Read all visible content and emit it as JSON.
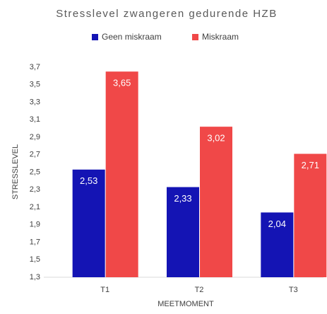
{
  "chart_data": {
    "type": "bar",
    "title": "Stresslevel zwangeren gedurende HZB",
    "x_label": "MEETMOMENT",
    "y_label": "STRESSLEVEL",
    "categories": [
      "T1",
      "T2",
      "T3"
    ],
    "series": [
      {
        "name": "Geen miskraam",
        "color": "#1414b4",
        "values": [
          2.53,
          2.33,
          2.04
        ],
        "value_labels": [
          "2,53",
          "2,33",
          "2,04"
        ]
      },
      {
        "name": "Miskraam",
        "color": "#f04848",
        "values": [
          3.65,
          3.02,
          2.71
        ],
        "value_labels": [
          "3,65",
          "3,02",
          "2,71"
        ]
      }
    ],
    "ylim": [
      1.3,
      3.7
    ],
    "yticks": [
      {
        "value": 1.3,
        "label": "1,3"
      },
      {
        "value": 1.5,
        "label": "1,5"
      },
      {
        "value": 1.7,
        "label": "1,7"
      },
      {
        "value": 1.9,
        "label": "1,9"
      },
      {
        "value": 2.1,
        "label": "2,1"
      },
      {
        "value": 2.3,
        "label": "2,3"
      },
      {
        "value": 2.5,
        "label": "2,5"
      },
      {
        "value": 2.7,
        "label": "2,7"
      },
      {
        "value": 2.9,
        "label": "2,9"
      },
      {
        "value": 3.1,
        "label": "3,1"
      },
      {
        "value": 3.3,
        "label": "3,3"
      },
      {
        "value": 3.5,
        "label": "3,5"
      },
      {
        "value": 3.7,
        "label": "3,7"
      }
    ],
    "grid": false,
    "legend": "top"
  }
}
